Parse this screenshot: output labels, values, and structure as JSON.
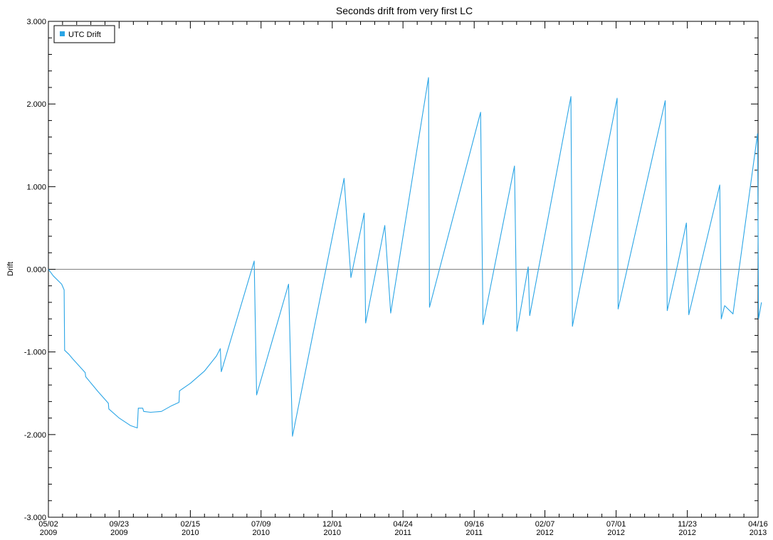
{
  "chart_data": {
    "type": "line",
    "title": "Seconds drift from very first LC",
    "xlabel": "",
    "ylabel": "Drift",
    "ylim": [
      -3.0,
      3.0
    ],
    "xlim": [
      "2009-05-02",
      "2013-04-16"
    ],
    "yticks": [
      {
        "value": 3.0,
        "label": "3.000"
      },
      {
        "value": 2.0,
        "label": "2.000"
      },
      {
        "value": 1.0,
        "label": "1.000"
      },
      {
        "value": 0.0,
        "label": "0.000"
      },
      {
        "value": -1.0,
        "label": "-1.000"
      },
      {
        "value": -2.0,
        "label": "-2.000"
      },
      {
        "value": -3.0,
        "label": "-3.000"
      }
    ],
    "xticks": [
      {
        "value": "2009-05-02",
        "label": "05/02",
        "year": "2009"
      },
      {
        "value": "2009-09-23",
        "label": "09/23",
        "year": "2009"
      },
      {
        "value": "2010-02-15",
        "label": "02/15",
        "year": "2010"
      },
      {
        "value": "2010-07-09",
        "label": "07/09",
        "year": "2010"
      },
      {
        "value": "2010-12-01",
        "label": "12/01",
        "year": "2010"
      },
      {
        "value": "2011-04-24",
        "label": "04/24",
        "year": "2011"
      },
      {
        "value": "2011-09-16",
        "label": "09/16",
        "year": "2011"
      },
      {
        "value": "2012-02-07",
        "label": "02/07",
        "year": "2012"
      },
      {
        "value": "2012-07-01",
        "label": "07/01",
        "year": "2012"
      },
      {
        "value": "2012-11-23",
        "label": "11/23",
        "year": "2012"
      },
      {
        "value": "2013-04-16",
        "label": "04/16",
        "year": "2013"
      }
    ],
    "zero_line": true,
    "grid": false,
    "legend_position": "top-left",
    "series": [
      {
        "name": "UTC Drift",
        "color": "#2aa5e6",
        "points": [
          [
            "2009-05-02",
            0.0
          ],
          [
            "2009-05-12",
            -0.08
          ],
          [
            "2009-05-29",
            -0.18
          ],
          [
            "2009-06-03",
            -0.25
          ],
          [
            "2009-06-04",
            -0.98
          ],
          [
            "2009-06-13",
            -1.03
          ],
          [
            "2009-06-20",
            -1.08
          ],
          [
            "2009-07-16",
            -1.25
          ],
          [
            "2009-07-17",
            -1.3
          ],
          [
            "2009-08-11",
            -1.48
          ],
          [
            "2009-09-01",
            -1.62
          ],
          [
            "2009-09-02",
            -1.69
          ],
          [
            "2009-09-23",
            -1.8
          ],
          [
            "2009-10-16",
            -1.89
          ],
          [
            "2009-10-30",
            -1.92
          ],
          [
            "2009-11-01",
            -1.68
          ],
          [
            "2009-11-10",
            -1.68
          ],
          [
            "2009-11-12",
            -1.72
          ],
          [
            "2009-11-26",
            -1.73
          ],
          [
            "2009-12-18",
            -1.72
          ],
          [
            "2010-01-08",
            -1.65
          ],
          [
            "2010-01-23",
            -1.61
          ],
          [
            "2010-01-24",
            -1.47
          ],
          [
            "2010-02-15",
            -1.38
          ],
          [
            "2010-03-16",
            -1.23
          ],
          [
            "2010-04-09",
            -1.05
          ],
          [
            "2010-04-17",
            -0.96
          ],
          [
            "2010-04-19",
            -1.24
          ],
          [
            "2010-06-25",
            0.1
          ],
          [
            "2010-06-30",
            -1.52
          ],
          [
            "2010-09-03",
            -0.18
          ],
          [
            "2010-09-11",
            -2.02
          ],
          [
            "2010-12-25",
            1.1
          ],
          [
            "2011-01-08",
            -0.1
          ],
          [
            "2011-02-04",
            0.68
          ],
          [
            "2011-02-07",
            -0.65
          ],
          [
            "2011-03-18",
            0.53
          ],
          [
            "2011-03-30",
            -0.53
          ],
          [
            "2011-06-15",
            2.32
          ],
          [
            "2011-06-17",
            -0.46
          ],
          [
            "2011-09-29",
            1.9
          ],
          [
            "2011-10-04",
            -0.67
          ],
          [
            "2011-12-07",
            1.25
          ],
          [
            "2011-12-12",
            -0.75
          ],
          [
            "2012-01-04",
            0.03
          ],
          [
            "2012-01-07",
            -0.56
          ],
          [
            "2012-03-31",
            2.09
          ],
          [
            "2012-04-03",
            -0.69
          ],
          [
            "2012-07-03",
            2.07
          ],
          [
            "2012-07-05",
            -0.48
          ],
          [
            "2012-10-09",
            2.04
          ],
          [
            "2012-10-13",
            -0.5
          ],
          [
            "2012-11-03",
            0.05
          ],
          [
            "2012-11-21",
            0.56
          ],
          [
            "2012-11-26",
            -0.55
          ],
          [
            "2013-01-28",
            1.02
          ],
          [
            "2013-01-31",
            -0.6
          ],
          [
            "2013-02-07",
            -0.44
          ],
          [
            "2013-02-24",
            -0.54
          ],
          [
            "2013-04-15",
            1.64
          ],
          [
            "2013-04-17",
            -0.6
          ],
          [
            "2013-04-23",
            -0.4
          ]
        ]
      }
    ]
  }
}
